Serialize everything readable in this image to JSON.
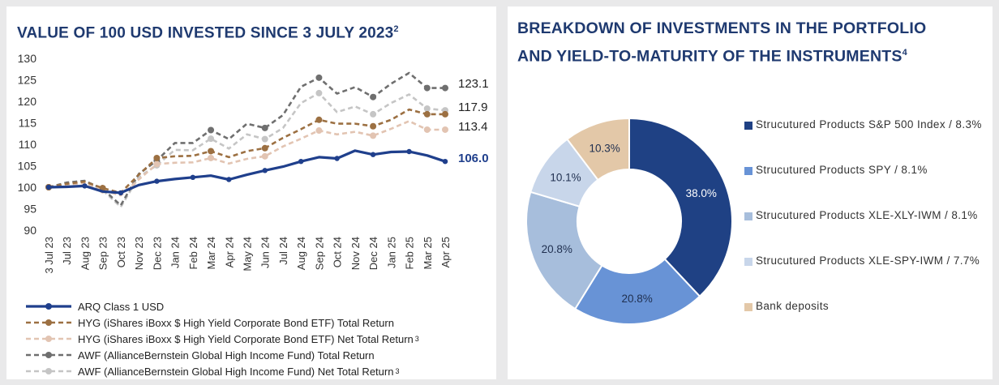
{
  "left": {
    "title": "VALUE OF 100 USD INVESTED SINCE 3 JULY 2023",
    "title_sup": "2",
    "end_labels": [
      "123.1",
      "117.9",
      "113.4",
      "106.0"
    ]
  },
  "right": {
    "title_line1": "BREAKDOWN OF INVESTMENTS IN THE PORTFOLIO",
    "title_line2": "AND YIELD-TO-MATURITY OF THE INSTRUMENTS",
    "title_sup": "4"
  },
  "chart_data": [
    {
      "type": "line",
      "title": "VALUE OF 100 USD INVESTED SINCE 3 JULY 2023",
      "ylim": [
        90,
        130
      ],
      "yticks": [
        90,
        95,
        100,
        105,
        110,
        115,
        120,
        125,
        130
      ],
      "grid": false,
      "legend": "bottom",
      "x": [
        "3 Jul 23",
        "Jul 23",
        "Aug 23",
        "Sep 23",
        "Oct 23",
        "Nov 23",
        "Dec 23",
        "Jan 24",
        "Feb 24",
        "Mar 24",
        "Apr 24",
        "May 24",
        "Jun 24",
        "Jul 24",
        "Aug 24",
        "Sep 24",
        "Oct 24",
        "Nov 24",
        "Dec 24",
        "Jan 25",
        "Feb 25",
        "Mar 25",
        "Apr 25"
      ],
      "series": [
        {
          "name": "ARQ Class 1 USD",
          "color": "#1f3f8c",
          "dash": "solid",
          "marker_every": 2,
          "values": [
            100,
            100.1,
            100.3,
            99.0,
            98.7,
            100.5,
            101.4,
            101.9,
            102.3,
            102.7,
            101.8,
            102.9,
            103.9,
            104.8,
            106.0,
            107.0,
            106.7,
            108.5,
            107.6,
            108.2,
            108.3,
            107.4,
            106.0
          ]
        },
        {
          "name": "HYG (iShares iBoxx $ High Yield Corporate Bond ETF) Total Return",
          "sup": "",
          "color": "#9c7042",
          "dash": "dashed",
          "marker_every": 3,
          "values": [
            100,
            100.8,
            101.3,
            99.8,
            98.7,
            102.9,
            106.8,
            107.2,
            107.3,
            108.4,
            107.0,
            108.4,
            109.1,
            111.5,
            113.5,
            115.7,
            114.8,
            114.8,
            114.2,
            115.7,
            118.1,
            117.0,
            117.0
          ]
        },
        {
          "name": "HYG (iShares iBoxx $ High Yield Corporate Bond ETF) Net Total Return",
          "sup": "3",
          "color": "#e2c4b2",
          "dash": "dashed",
          "marker_every": 3,
          "values": [
            100,
            100.6,
            101.0,
            99.3,
            98.1,
            101.8,
            105.4,
            105.7,
            105.8,
            106.8,
            105.5,
            106.6,
            107.2,
            109.5,
            111.3,
            113.2,
            112.3,
            112.9,
            112.0,
            113.6,
            115.4,
            113.4,
            113.4
          ]
        },
        {
          "name": "AWF (AllianceBernstein Global High Income Fund) Total Return",
          "sup": "",
          "color": "#6f6f6f",
          "dash": "dashed",
          "marker_every": 3,
          "values": [
            100,
            101.1,
            101.5,
            99.6,
            95.8,
            103.1,
            106.2,
            110.3,
            110.3,
            113.3,
            111.2,
            114.8,
            113.8,
            116.8,
            123.4,
            125.5,
            121.8,
            123.3,
            121.0,
            124.1,
            126.6,
            123.1,
            123.1
          ]
        },
        {
          "name": "AWF (AllianceBernstein Global High Income Fund) Net Total Return",
          "sup": "3",
          "color": "#c5c5c5",
          "dash": "dashed",
          "marker_every": 3,
          "values": [
            100,
            100.9,
            101.2,
            99.3,
            95.4,
            102.4,
            105.1,
            108.7,
            108.6,
            111.3,
            109.0,
            112.3,
            111.2,
            113.8,
            119.6,
            121.9,
            117.5,
            118.8,
            117.0,
            119.6,
            121.6,
            118.3,
            117.9
          ]
        }
      ]
    },
    {
      "type": "pie",
      "title": "BREAKDOWN OF INVESTMENTS IN THE PORTFOLIO AND YIELD-TO-MATURITY OF THE INSTRUMENTS",
      "donut": true,
      "legend": "right",
      "slices": [
        {
          "name": "Strucutured Products S&P 500 Index / 8.3%",
          "value": 38.0,
          "label": "38.0%",
          "color": "#1f4184",
          "label_color": "#ffffff"
        },
        {
          "name": "Strucutured Products SPY / 8.1%",
          "value": 20.8,
          "label": "20.8%",
          "color": "#6893d6",
          "label_color": "#1f2f4f"
        },
        {
          "name": "Strucutured Products XLE-XLY-IWM / 8.1%",
          "value": 20.8,
          "label": "20.8%",
          "color": "#a7bedc",
          "label_color": "#1f2f4f"
        },
        {
          "name": "Strucutured Products XLE-SPY-IWM / 7.7%",
          "value": 10.1,
          "label": "10.1%",
          "color": "#c8d6ea",
          "label_color": "#1f2f4f"
        },
        {
          "name": "Bank deposits",
          "value": 10.3,
          "label": "10.3%",
          "color": "#e3c8a8",
          "label_color": "#1f2f4f"
        }
      ]
    }
  ]
}
